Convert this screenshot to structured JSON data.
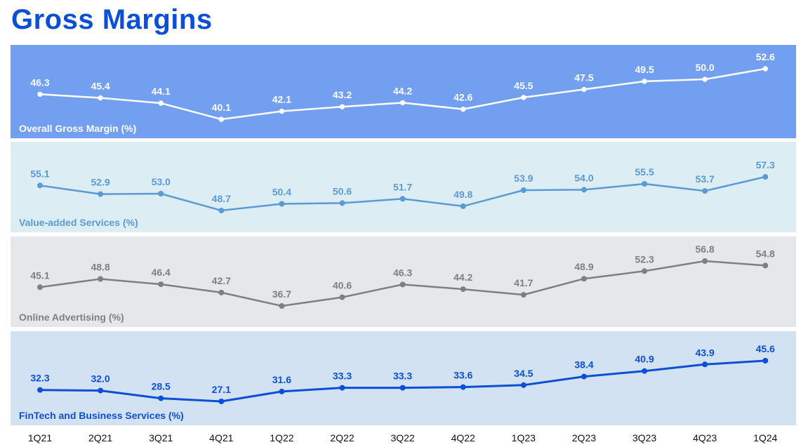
{
  "header": {
    "title": "Gross Margins"
  },
  "chart_data": {
    "type": "line",
    "categories": [
      "1Q21",
      "2Q21",
      "3Q21",
      "4Q21",
      "1Q22",
      "2Q22",
      "3Q22",
      "4Q22",
      "1Q23",
      "2Q23",
      "3Q23",
      "4Q23",
      "1Q24"
    ],
    "panels": [
      {
        "name": "Overall Gross Margin (%)",
        "bg_color": "#729ff0",
        "line_color": "#ffffff",
        "label_color": "#ffffff",
        "values": [
          46.3,
          45.4,
          44.1,
          40.1,
          42.1,
          43.2,
          44.2,
          42.6,
          45.5,
          47.5,
          49.5,
          50.0,
          52.6
        ]
      },
      {
        "name": "Value-added Services (%)",
        "bg_color": "#dcedf3",
        "line_color": "#5b9bd5",
        "label_color": "#5b9bd5",
        "values": [
          55.1,
          52.9,
          53.0,
          48.7,
          50.4,
          50.6,
          51.7,
          49.8,
          53.9,
          54.0,
          55.5,
          53.7,
          57.3
        ]
      },
      {
        "name": "Online Advertising (%)",
        "bg_color": "#e5e7ea",
        "line_color": "#7f7f7f",
        "label_color": "#7f7f7f",
        "values": [
          45.1,
          48.8,
          46.4,
          42.7,
          36.7,
          40.6,
          46.3,
          44.2,
          41.7,
          48.9,
          52.3,
          56.8,
          54.8
        ]
      },
      {
        "name": "FinTech and Business Services (%)",
        "bg_color": "#d3e2f3",
        "line_color": "#0a4fd6",
        "label_color": "#0a4fd6",
        "values": [
          32.3,
          32.0,
          28.5,
          27.1,
          31.6,
          33.3,
          33.3,
          33.6,
          34.5,
          38.4,
          40.9,
          43.9,
          45.6
        ]
      }
    ]
  }
}
